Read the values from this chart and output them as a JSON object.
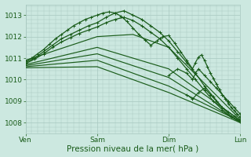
{
  "background_color": "#cce8e0",
  "grid_color": "#a8c8c0",
  "line_color": "#1a5c1a",
  "xlabel": "Pression niveau de la mer( hPa )",
  "xlabel_fontsize": 7.5,
  "tick_fontsize": 6.5,
  "xlim": [
    0,
    72
  ],
  "ylim": [
    1007.5,
    1013.5
  ],
  "yticks": [
    1008,
    1009,
    1010,
    1011,
    1012,
    1013
  ],
  "xtick_positions": [
    0,
    24,
    48,
    72
  ],
  "xtick_labels": [
    "Ven",
    "Sam",
    "Dim",
    "Lun"
  ],
  "series": [
    {
      "x": [
        0,
        3,
        6,
        9,
        12,
        15,
        18,
        21,
        24,
        27,
        30,
        33,
        36,
        39,
        42,
        45,
        48,
        51,
        54,
        57,
        60,
        63,
        66,
        69,
        72
      ],
      "y": [
        1010.8,
        1011.0,
        1011.3,
        1011.6,
        1011.9,
        1012.1,
        1012.3,
        1012.5,
        1012.65,
        1012.9,
        1013.1,
        1013.2,
        1013.0,
        1012.8,
        1012.5,
        1012.2,
        1011.8,
        1011.3,
        1010.8,
        1010.3,
        1009.7,
        1009.2,
        1008.7,
        1008.3,
        1008.05
      ],
      "marker": true,
      "lw": 0.9
    },
    {
      "x": [
        0,
        3,
        6,
        9,
        12,
        15,
        18,
        21,
        24,
        27,
        30,
        33,
        36,
        39,
        42,
        45,
        48,
        51,
        54,
        57,
        60,
        63,
        66,
        69,
        72
      ],
      "y": [
        1010.75,
        1010.95,
        1011.2,
        1011.5,
        1011.75,
        1011.95,
        1012.15,
        1012.3,
        1012.45,
        1012.65,
        1012.8,
        1012.9,
        1012.75,
        1012.5,
        1012.2,
        1011.9,
        1011.5,
        1011.0,
        1010.5,
        1010.0,
        1009.5,
        1009.0,
        1008.6,
        1008.25,
        1008.1
      ],
      "marker": true,
      "lw": 0.9
    },
    {
      "x": [
        0,
        2,
        4,
        6,
        8,
        10,
        12,
        14,
        16,
        18,
        20,
        22,
        24,
        26,
        28,
        30,
        32,
        34,
        36,
        38,
        40,
        42,
        44,
        46,
        48,
        50,
        52,
        54,
        56,
        57,
        58,
        59,
        60,
        61,
        62,
        63,
        64,
        65,
        66,
        67,
        68,
        69,
        70,
        71,
        72
      ],
      "y": [
        1010.85,
        1011.0,
        1011.2,
        1011.4,
        1011.65,
        1011.9,
        1012.1,
        1012.3,
        1012.5,
        1012.65,
        1012.8,
        1012.9,
        1013.0,
        1013.1,
        1013.15,
        1013.1,
        1012.95,
        1012.7,
        1012.4,
        1012.1,
        1011.85,
        1011.6,
        1011.8,
        1012.0,
        1012.05,
        1011.7,
        1011.3,
        1010.9,
        1010.5,
        1010.8,
        1011.05,
        1011.15,
        1010.9,
        1010.6,
        1010.3,
        1010.05,
        1009.8,
        1009.55,
        1009.3,
        1009.1,
        1008.9,
        1008.7,
        1008.55,
        1008.4,
        1008.25
      ],
      "marker": true,
      "lw": 0.9
    },
    {
      "x": [
        0,
        24,
        36,
        48,
        72
      ],
      "y": [
        1010.9,
        1012.0,
        1012.1,
        1011.5,
        1008.15
      ],
      "marker": false,
      "lw": 0.85
    },
    {
      "x": [
        0,
        24,
        48,
        72
      ],
      "y": [
        1010.7,
        1011.5,
        1010.5,
        1008.1
      ],
      "marker": false,
      "lw": 0.85
    },
    {
      "x": [
        0,
        24,
        48,
        72
      ],
      "y": [
        1010.65,
        1011.2,
        1010.1,
        1008.0
      ],
      "marker": false,
      "lw": 0.85
    },
    {
      "x": [
        0,
        24,
        48,
        72
      ],
      "y": [
        1010.6,
        1010.9,
        1009.7,
        1008.05
      ],
      "marker": false,
      "lw": 0.85
    },
    {
      "x": [
        0,
        24,
        48,
        72
      ],
      "y": [
        1010.55,
        1010.6,
        1009.4,
        1008.0
      ],
      "marker": false,
      "lw": 0.85
    },
    {
      "x": [
        48,
        51,
        54,
        56,
        57,
        58,
        60,
        62,
        64,
        66,
        68,
        70,
        72
      ],
      "y": [
        1010.2,
        1010.5,
        1010.3,
        1010.0,
        1010.3,
        1010.5,
        1010.2,
        1009.9,
        1009.6,
        1009.3,
        1009.0,
        1008.7,
        1008.4
      ],
      "marker": true,
      "lw": 0.9
    },
    {
      "x": [
        54,
        56,
        58,
        60,
        62,
        64,
        66,
        68,
        70,
        72
      ],
      "y": [
        1009.3,
        1009.1,
        1009.4,
        1009.6,
        1009.3,
        1009.0,
        1008.7,
        1008.5,
        1008.3,
        1008.1
      ],
      "marker": true,
      "lw": 0.9
    }
  ]
}
